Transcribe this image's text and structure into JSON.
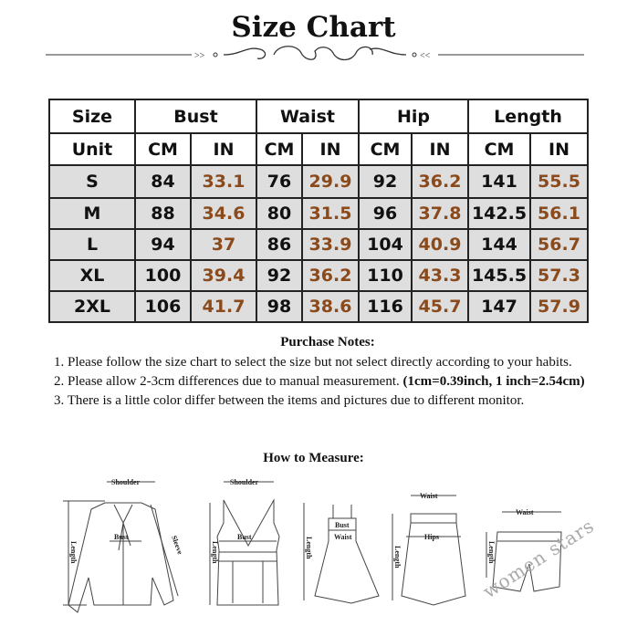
{
  "title": "Size Chart",
  "table": {
    "header": [
      "Size",
      "Bust",
      "Waist",
      "Hip",
      "Length"
    ],
    "unit_row": [
      "Unit",
      "CM",
      "IN",
      "CM",
      "IN",
      "CM",
      "IN",
      "CM",
      "IN"
    ],
    "rows": [
      [
        "S",
        "84",
        "33.1",
        "76",
        "29.9",
        "92",
        "36.2",
        "141",
        "55.5"
      ],
      [
        "M",
        "88",
        "34.6",
        "80",
        "31.5",
        "96",
        "37.8",
        "142.5",
        "56.1"
      ],
      [
        "L",
        "94",
        "37",
        "86",
        "33.9",
        "104",
        "40.9",
        "144",
        "56.7"
      ],
      [
        "XL",
        "100",
        "39.4",
        "92",
        "36.2",
        "110",
        "43.3",
        "145.5",
        "57.3"
      ],
      [
        "2XL",
        "106",
        "41.7",
        "98",
        "38.6",
        "116",
        "45.7",
        "147",
        "57.9"
      ]
    ],
    "colors": {
      "inch_text": "#8a4a1c",
      "row_bg": "#dedede"
    }
  },
  "notes": {
    "title": "Purchase Notes:",
    "line1": "1. Please follow the size chart to select the size but not select directly according to your habits.",
    "line2": "2. Please allow 2-3cm differences due to manual measurement. ",
    "line2_bold": "(1cm=0.39inch, 1 inch=2.54cm)",
    "line3": "3. There is a little color differ between the items and pictures due to different monitor."
  },
  "how_to_measure": {
    "title": "How to Measure:",
    "labels": {
      "shoulder": "Shoulder",
      "bust": "Bust",
      "length": "Length",
      "sleeve": "Sleeve",
      "waist": "Waist",
      "hips": "Hips"
    }
  },
  "watermark": "women stars"
}
